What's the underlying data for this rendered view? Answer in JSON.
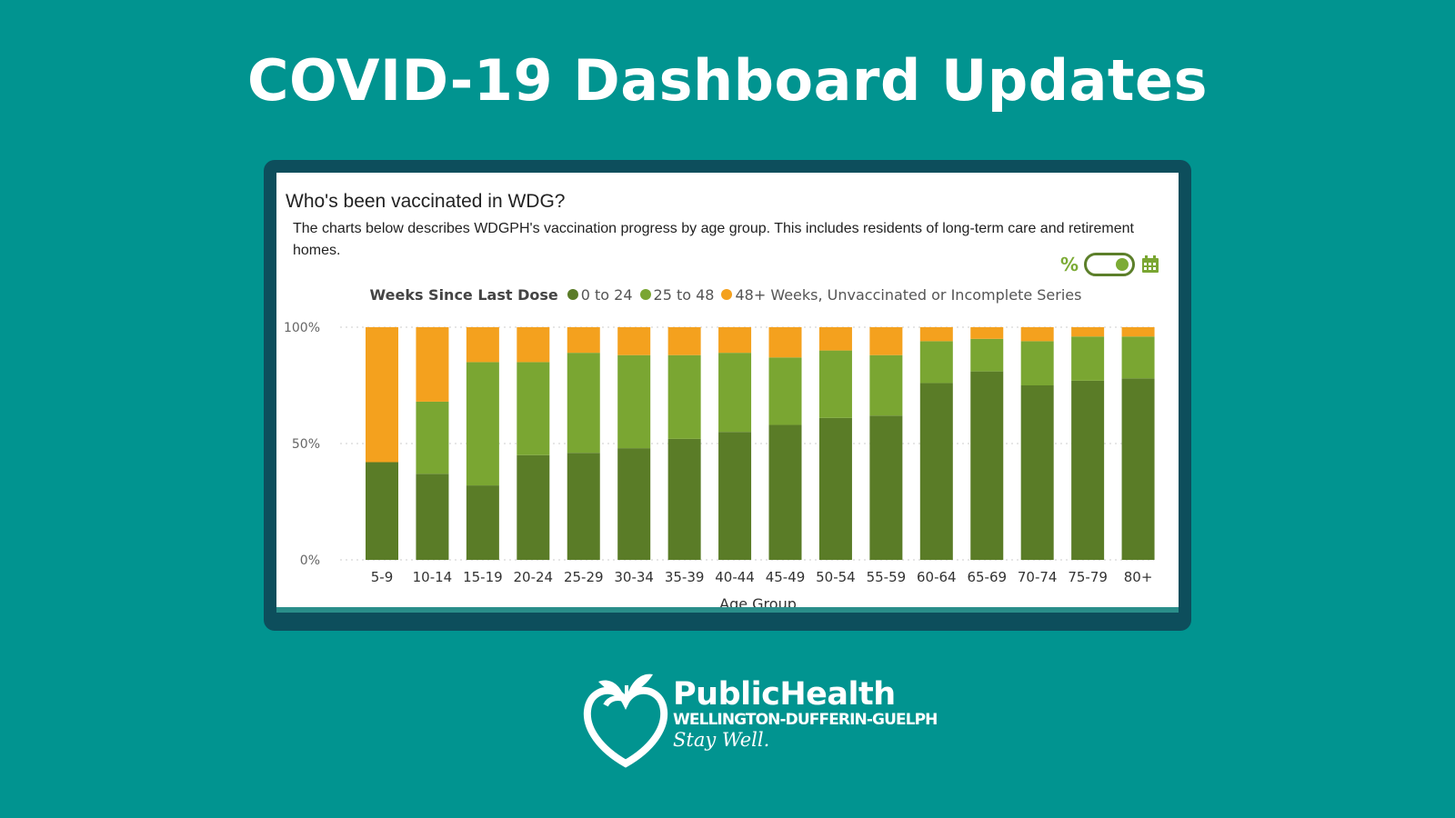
{
  "headline": "COVID-19 Dashboard Updates",
  "panel": {
    "title": "Who's been vaccinated in WDG?",
    "description": "The charts below describes WDGPH's vaccination progress by age group. This includes residents of long-term care and retirement homes."
  },
  "toggle": {
    "left_icon": "percent-icon",
    "right_icon": "calendar-icon",
    "state": "on"
  },
  "logo": {
    "name": "PublicHealth",
    "region": "WELLINGTON-DUFFERIN-GUELPH",
    "tagline": "Stay Well.",
    "icon": "apple-heart-logo"
  },
  "colors": {
    "background": "#019490",
    "series_0_24": "#5a7c27",
    "series_25_48": "#7aa632",
    "series_48_plus": "#f4a11e"
  },
  "chart_data": {
    "type": "bar",
    "stacked": true,
    "legend_title": "Weeks Since Last Dose",
    "legend_position": "top",
    "xlabel": "Age Group",
    "ylabel": "",
    "ylim": [
      0,
      100
    ],
    "y_ticks": [
      "0%",
      "50%",
      "100%"
    ],
    "grid": true,
    "categories": [
      "5-9",
      "10-14",
      "15-19",
      "20-24",
      "25-29",
      "30-34",
      "35-39",
      "40-44",
      "45-49",
      "50-54",
      "55-59",
      "60-64",
      "65-69",
      "70-74",
      "75-79",
      "80+"
    ],
    "series": [
      {
        "name": "0 to 24",
        "color": "#5a7c27",
        "values": [
          42,
          37,
          32,
          45,
          46,
          48,
          52,
          55,
          58,
          61,
          62,
          76,
          81,
          75,
          77,
          78
        ]
      },
      {
        "name": "25 to 48",
        "color": "#7aa632",
        "values": [
          0,
          31,
          53,
          40,
          43,
          40,
          36,
          34,
          29,
          29,
          26,
          18,
          14,
          19,
          19,
          18
        ]
      },
      {
        "name": "48+ Weeks, Unvaccinated or Incomplete Series",
        "color": "#f4a11e",
        "values": [
          58,
          32,
          15,
          15,
          11,
          12,
          12,
          11,
          13,
          10,
          12,
          6,
          5,
          6,
          4,
          4
        ]
      }
    ]
  }
}
